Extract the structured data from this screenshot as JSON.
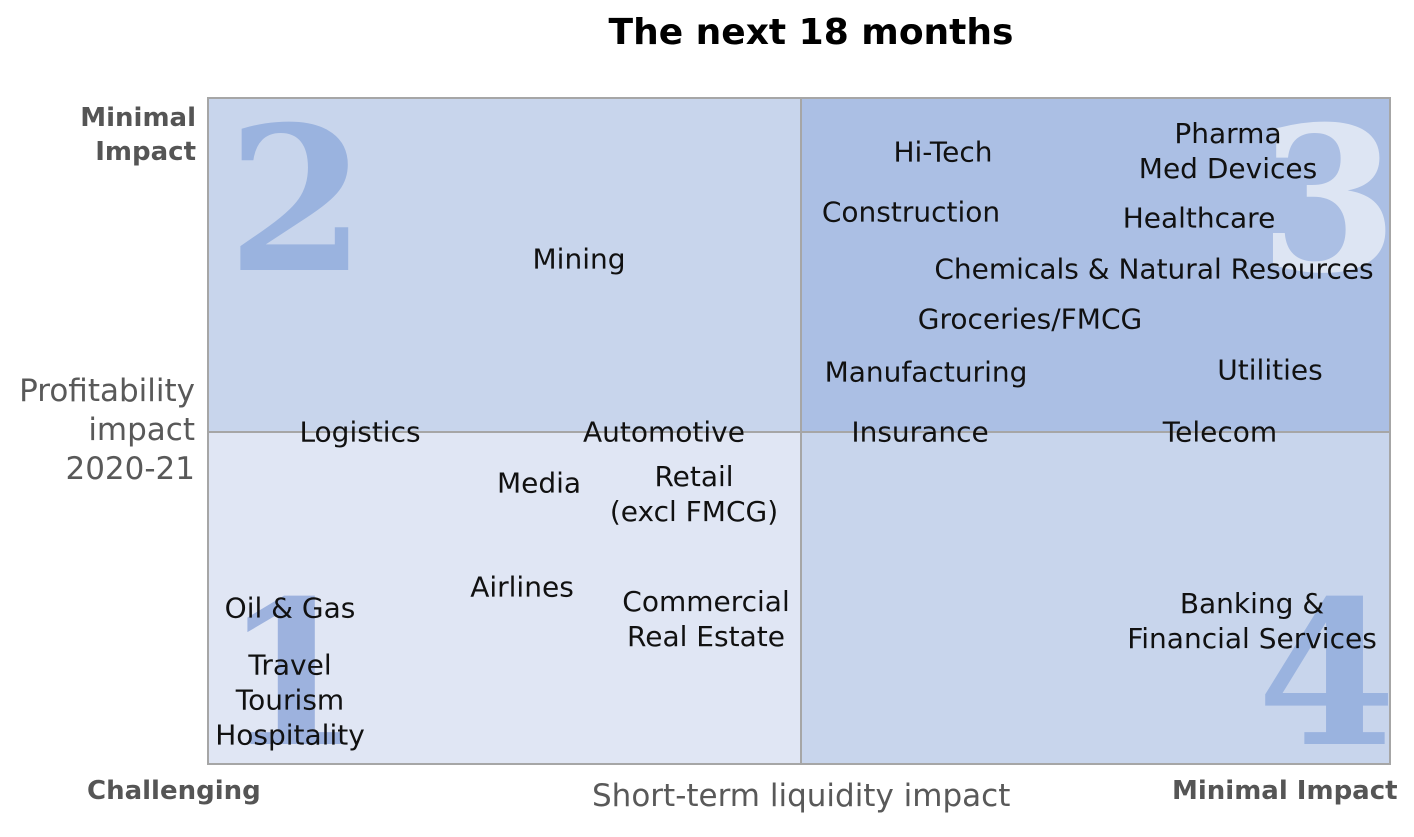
{
  "title": "The next 18 months",
  "y_axis": {
    "top_label_line1": "Minimal",
    "top_label_line2": "Impact",
    "name_line1": "Profitability",
    "name_line2": "impact",
    "name_line3": "2020-21"
  },
  "x_axis": {
    "left_label": "Challenging",
    "name": "Short-term liquidity impact",
    "right_label": "Minimal Impact"
  },
  "quadrants": {
    "q1": {
      "number": "1",
      "color": "#e0e6f4",
      "number_color": "#9db2de"
    },
    "q2": {
      "number": "2",
      "color": "#c8d5ec",
      "number_color": "#9ab3df"
    },
    "q3": {
      "number": "3",
      "color": "#abbfe4",
      "number_color": "#dde5f3"
    },
    "q4": {
      "number": "4",
      "color": "#c8d5ec",
      "number_color": "#9ab3df"
    }
  },
  "sectors": {
    "hitech": "Hi-Tech",
    "pharma_line1": "Pharma",
    "pharma_line2": "Med Devices",
    "construction": "Construction",
    "healthcare": "Healthcare",
    "mining": "Mining",
    "chemicals": "Chemicals & Natural Resources",
    "groceries": "Groceries/FMCG",
    "manufacturing": "Manufacturing",
    "utilities": "Utilities",
    "logistics": "Logistics",
    "automotive": "Automotive",
    "insurance": "Insurance",
    "telecom": "Telecom",
    "media": "Media",
    "retail_line1": "Retail",
    "retail_line2": "(excl FMCG)",
    "airlines": "Airlines",
    "oilgas": "Oil & Gas",
    "commercial_line1": "Commercial",
    "commercial_line2": "Real Estate",
    "banking_line1": "Banking &",
    "banking_line2": "Financial Services",
    "travel_line1": "Travel",
    "travel_line2": "Tourism",
    "travel_line3": "Hospitality"
  }
}
